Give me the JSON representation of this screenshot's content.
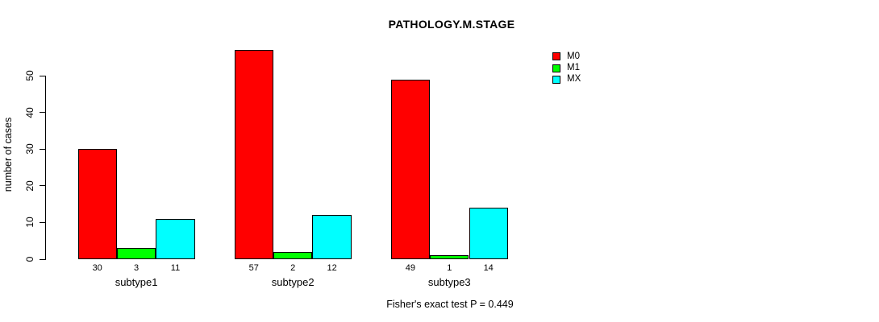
{
  "chart_data": {
    "type": "bar",
    "title": "PATHOLOGY.M.STAGE",
    "ylabel": "number of cases",
    "xlabel": "",
    "categories": [
      "subtype1",
      "subtype2",
      "subtype3"
    ],
    "series": [
      {
        "name": "M0",
        "color": "#ff0000",
        "values": [
          30,
          57,
          49
        ]
      },
      {
        "name": "M1",
        "color": "#00ff00",
        "values": [
          3,
          2,
          1
        ]
      },
      {
        "name": "MX",
        "color": "#00ffff",
        "values": [
          11,
          12,
          14
        ]
      }
    ],
    "yticks": [
      0,
      10,
      20,
      30,
      40,
      50
    ],
    "ylim": [
      0,
      57
    ],
    "grid": false,
    "bar_borders": "#000000",
    "value_labels_shown": true,
    "legend_position": "top-right",
    "annotation": "Fisher's exact test P = 0.449"
  }
}
